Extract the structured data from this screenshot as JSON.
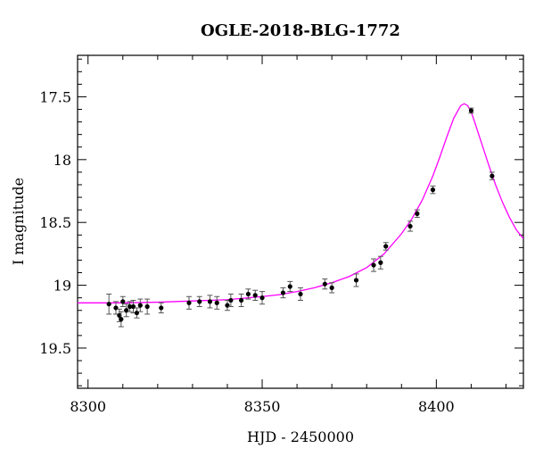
{
  "chart_data": {
    "type": "scatter",
    "title": "OGLE-2018-BLG-1772",
    "xlabel": "HJD - 2450000",
    "ylabel": "I magnitude",
    "xlim": [
      8297,
      8425
    ],
    "ylim": [
      19.82,
      17.17
    ],
    "y_inverted": true,
    "x_ticks": [
      8300,
      8350,
      8400
    ],
    "x_tick_labels": [
      "8300",
      "8350",
      "8400"
    ],
    "y_ticks": [
      17.5,
      18,
      18.5,
      19,
      19.5
    ],
    "y_tick_labels": [
      "17.5",
      "18",
      "18.5",
      "19",
      "19.5"
    ],
    "grid": false,
    "colors": {
      "data": "#000000",
      "errorbar": "#555555",
      "model": "#ff00ff",
      "axes": "#000000"
    },
    "series": [
      {
        "type": "scatter_errorbar",
        "points": [
          {
            "x": 8306.0,
            "y": 19.15,
            "err": 0.08
          },
          {
            "x": 8308.0,
            "y": 19.18,
            "err": 0.05
          },
          {
            "x": 8309.0,
            "y": 19.24,
            "err": 0.05
          },
          {
            "x": 8309.5,
            "y": 19.27,
            "err": 0.06
          },
          {
            "x": 8310.0,
            "y": 19.13,
            "err": 0.04
          },
          {
            "x": 8311.0,
            "y": 19.2,
            "err": 0.05
          },
          {
            "x": 8312.0,
            "y": 19.17,
            "err": 0.04
          },
          {
            "x": 8313.0,
            "y": 19.17,
            "err": 0.05
          },
          {
            "x": 8314.0,
            "y": 19.22,
            "err": 0.04
          },
          {
            "x": 8315.0,
            "y": 19.16,
            "err": 0.05
          },
          {
            "x": 8317.0,
            "y": 19.17,
            "err": 0.06
          },
          {
            "x": 8321.0,
            "y": 19.18,
            "err": 0.04
          },
          {
            "x": 8329.0,
            "y": 19.14,
            "err": 0.05
          },
          {
            "x": 8332.0,
            "y": 19.13,
            "err": 0.04
          },
          {
            "x": 8335.0,
            "y": 19.13,
            "err": 0.05
          },
          {
            "x": 8337.0,
            "y": 19.14,
            "err": 0.05
          },
          {
            "x": 8340.0,
            "y": 19.16,
            "err": 0.04
          },
          {
            "x": 8341.0,
            "y": 19.12,
            "err": 0.05
          },
          {
            "x": 8344.0,
            "y": 19.12,
            "err": 0.05
          },
          {
            "x": 8346.0,
            "y": 19.07,
            "err": 0.04
          },
          {
            "x": 8348.0,
            "y": 19.08,
            "err": 0.04
          },
          {
            "x": 8350.0,
            "y": 19.1,
            "err": 0.05
          },
          {
            "x": 8356.0,
            "y": 19.06,
            "err": 0.04
          },
          {
            "x": 8358.0,
            "y": 19.01,
            "err": 0.04
          },
          {
            "x": 8361.0,
            "y": 19.07,
            "err": 0.05
          },
          {
            "x": 8368.0,
            "y": 18.99,
            "err": 0.04
          },
          {
            "x": 8370.0,
            "y": 19.02,
            "err": 0.04
          },
          {
            "x": 8377.0,
            "y": 18.96,
            "err": 0.05
          },
          {
            "x": 8382.0,
            "y": 18.84,
            "err": 0.05
          },
          {
            "x": 8384.0,
            "y": 18.82,
            "err": 0.05
          },
          {
            "x": 8385.5,
            "y": 18.69,
            "err": 0.03
          },
          {
            "x": 8392.5,
            "y": 18.53,
            "err": 0.04
          },
          {
            "x": 8394.5,
            "y": 18.43,
            "err": 0.03
          },
          {
            "x": 8399.0,
            "y": 18.24,
            "err": 0.03
          },
          {
            "x": 8410.0,
            "y": 17.61,
            "err": 0.02
          },
          {
            "x": 8416.0,
            "y": 18.13,
            "err": 0.03
          }
        ]
      },
      {
        "type": "line",
        "points": [
          {
            "x": 8297,
            "y": 19.14
          },
          {
            "x": 8300,
            "y": 19.14
          },
          {
            "x": 8310,
            "y": 19.14
          },
          {
            "x": 8320,
            "y": 19.135
          },
          {
            "x": 8330,
            "y": 19.125
          },
          {
            "x": 8340,
            "y": 19.115
          },
          {
            "x": 8350,
            "y": 19.09
          },
          {
            "x": 8355,
            "y": 19.075
          },
          {
            "x": 8360,
            "y": 19.05
          },
          {
            "x": 8365,
            "y": 19.02
          },
          {
            "x": 8370,
            "y": 18.98
          },
          {
            "x": 8375,
            "y": 18.93
          },
          {
            "x": 8380,
            "y": 18.86
          },
          {
            "x": 8385,
            "y": 18.75
          },
          {
            "x": 8390,
            "y": 18.59
          },
          {
            "x": 8393,
            "y": 18.47
          },
          {
            "x": 8396,
            "y": 18.32
          },
          {
            "x": 8399,
            "y": 18.13
          },
          {
            "x": 8401,
            "y": 17.98
          },
          {
            "x": 8403,
            "y": 17.82
          },
          {
            "x": 8405,
            "y": 17.67
          },
          {
            "x": 8407,
            "y": 17.57
          },
          {
            "x": 8408,
            "y": 17.555
          },
          {
            "x": 8409,
            "y": 17.57
          },
          {
            "x": 8410,
            "y": 17.62
          },
          {
            "x": 8411,
            "y": 17.7
          },
          {
            "x": 8413,
            "y": 17.87
          },
          {
            "x": 8415,
            "y": 18.04
          },
          {
            "x": 8417,
            "y": 18.2
          },
          {
            "x": 8419,
            "y": 18.34
          },
          {
            "x": 8421,
            "y": 18.46
          },
          {
            "x": 8423,
            "y": 18.56
          },
          {
            "x": 8425,
            "y": 18.63
          }
        ]
      }
    ]
  }
}
